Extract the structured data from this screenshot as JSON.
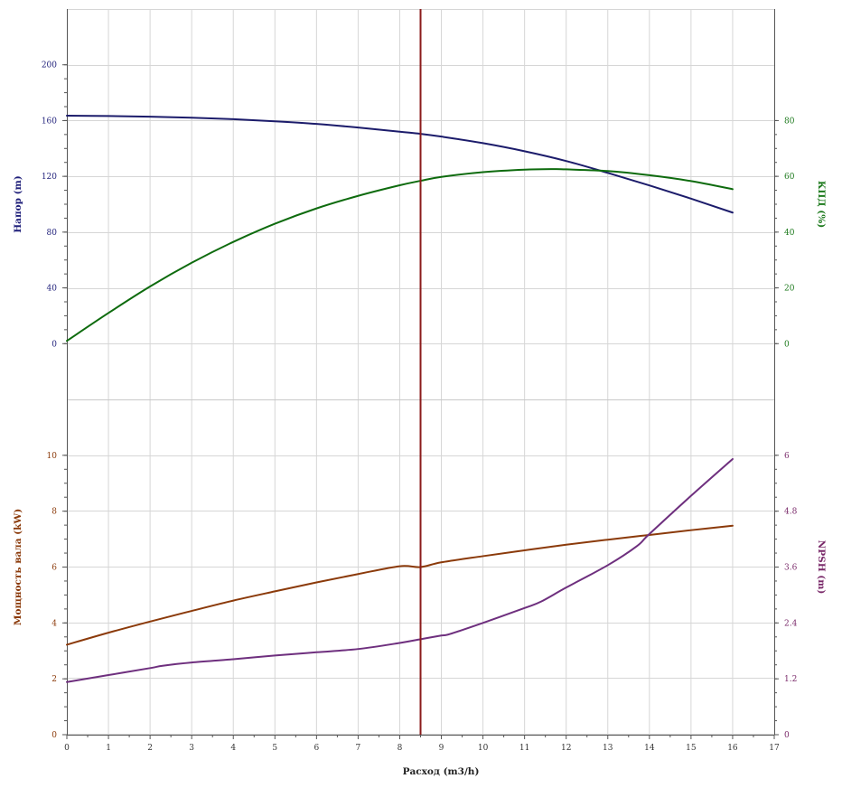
{
  "chart_data": {
    "type": "line",
    "grid": true,
    "x_axis": {
      "title": "Расход (m3/h)",
      "range": [
        0,
        17
      ],
      "ticks": [
        0,
        1,
        2,
        3,
        4,
        5,
        6,
        7,
        8,
        9,
        10,
        11,
        12,
        13,
        14,
        15,
        16,
        17
      ]
    },
    "operating_point": {
      "x": 8.5,
      "color": "#8b1a1a"
    },
    "panels": [
      {
        "name": "top",
        "left_axis": {
          "title": "Напор (m)",
          "color": "#1f1f7a",
          "range": [
            -40,
            240
          ],
          "ticks": [
            0,
            40,
            80,
            120,
            160,
            200
          ]
        },
        "right_axis": {
          "title": "КПД (%)",
          "color": "#1d7a1d",
          "range": [
            -20,
            120
          ],
          "ticks": [
            0,
            20,
            40,
            60,
            80
          ]
        }
      },
      {
        "name": "bottom",
        "left_axis": {
          "title": "Мощность вала (kW)",
          "color": "#8b3a0a",
          "range": [
            0,
            12
          ],
          "ticks": [
            0,
            2,
            4,
            6,
            8,
            10
          ]
        },
        "right_axis": {
          "title": "NPSH (m)",
          "color": "#7a2a6a",
          "range": [
            0,
            7.2
          ],
          "ticks": [
            0,
            1.2,
            2.4,
            3.6,
            4.8,
            6
          ],
          "tick_labels": [
            "0",
            "1.2",
            "2.4",
            "3.6",
            "4.8",
            "6"
          ]
        }
      }
    ],
    "series": [
      {
        "name": "Напор",
        "panel": "top",
        "axis": "left",
        "color": "#1c1c6b",
        "x": [
          0,
          1,
          2,
          3,
          4,
          5,
          6,
          7,
          8,
          8.5,
          9,
          10,
          11,
          12,
          13,
          14,
          15,
          16
        ],
        "y": [
          163.5,
          163.3,
          162.8,
          162.1,
          161.0,
          159.5,
          157.6,
          155.0,
          152.0,
          150.5,
          148.5,
          143.8,
          138.0,
          131.0,
          122.5,
          113.5,
          104.0,
          94.0
        ]
      },
      {
        "name": "КПД",
        "panel": "top",
        "axis": "right",
        "color": "#0e6b0e",
        "x": [
          0,
          1,
          2,
          3,
          4,
          5,
          6,
          7,
          8,
          8.5,
          9,
          10,
          11,
          11.7,
          12,
          13,
          14,
          15,
          16
        ],
        "y": [
          1.0,
          11.0,
          20.5,
          29.0,
          36.5,
          43.0,
          48.5,
          53.0,
          56.8,
          58.4,
          59.8,
          61.5,
          62.4,
          62.6,
          62.5,
          61.9,
          60.4,
          58.3,
          55.4
        ]
      },
      {
        "name": "Мощность вала",
        "panel": "bottom",
        "axis": "left",
        "color": "#8b3a0a",
        "x": [
          0,
          1,
          2,
          3,
          4,
          5,
          6,
          7,
          8,
          8.5,
          9,
          10,
          11,
          12,
          13,
          14,
          15,
          16
        ],
        "y": [
          3.22,
          3.65,
          4.05,
          4.43,
          4.8,
          5.13,
          5.45,
          5.75,
          6.03,
          6.0,
          6.17,
          6.39,
          6.6,
          6.8,
          6.98,
          7.15,
          7.32,
          7.48
        ]
      },
      {
        "name": "NPSH",
        "panel": "bottom",
        "axis": "right",
        "color": "#6e2f7e",
        "x": [
          0,
          1,
          2,
          2.3,
          3,
          4,
          5,
          6,
          7,
          8,
          8.5,
          9,
          9.2,
          10,
          11,
          11.4,
          12,
          13,
          13.7,
          14,
          15,
          16
        ],
        "y": [
          1.13,
          1.28,
          1.43,
          1.48,
          1.55,
          1.62,
          1.7,
          1.77,
          1.84,
          1.97,
          2.05,
          2.13,
          2.16,
          2.4,
          2.72,
          2.86,
          3.16,
          3.64,
          4.05,
          4.31,
          5.13,
          5.92
        ]
      }
    ]
  }
}
